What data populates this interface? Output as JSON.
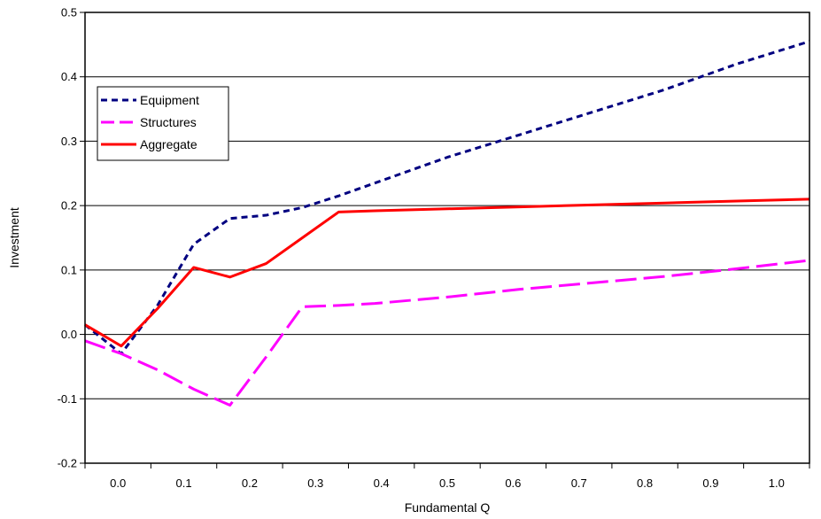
{
  "chart_data": {
    "type": "line",
    "title": "",
    "xlabel": "Fundamental Q",
    "ylabel": "Investment",
    "xlim": [
      0.0,
      1.0
    ],
    "ylim": [
      -0.2,
      0.5
    ],
    "xticks": [
      0.0,
      0.1,
      0.2,
      0.3,
      0.4,
      0.5,
      0.6,
      0.7,
      0.8,
      0.9,
      1.0
    ],
    "yticks": [
      -0.2,
      -0.1,
      0.0,
      0.1,
      0.2,
      0.3,
      0.4,
      0.5
    ],
    "xtick_labels": [
      "0.0",
      "0.1",
      "0.2",
      "0.3",
      "0.4",
      "0.5",
      "0.6",
      "0.7",
      "0.8",
      "0.9",
      "1.0"
    ],
    "ytick_labels": [
      "-0.2",
      "-0.1",
      "0.0",
      "0.1",
      "0.2",
      "0.3",
      "0.4",
      "0.5"
    ],
    "grid": "horizontal",
    "legend_position": "top-left",
    "series": [
      {
        "name": "Equipment",
        "color": "#000080",
        "style": "dotted",
        "x": [
          0.0,
          0.05,
          0.1,
          0.15,
          0.2,
          0.25,
          0.3,
          0.35,
          0.4,
          0.5,
          0.6,
          0.7,
          0.8,
          0.9,
          1.0
        ],
        "y": [
          0.015,
          -0.03,
          0.045,
          0.14,
          0.18,
          0.185,
          0.197,
          0.215,
          0.235,
          0.275,
          0.31,
          0.345,
          0.38,
          0.42,
          0.455
        ]
      },
      {
        "name": "Structures",
        "color": "#ff00ff",
        "style": "dashed",
        "x": [
          0.0,
          0.05,
          0.1,
          0.15,
          0.2,
          0.25,
          0.3,
          0.35,
          0.4,
          0.5,
          0.6,
          0.7,
          0.8,
          0.9,
          1.0
        ],
        "y": [
          -0.01,
          -0.03,
          -0.055,
          -0.085,
          -0.11,
          -0.035,
          0.043,
          0.045,
          0.048,
          0.058,
          0.07,
          0.08,
          0.09,
          0.102,
          0.115
        ]
      },
      {
        "name": "Aggregate",
        "color": "#ff0000",
        "style": "solid",
        "x": [
          0.0,
          0.05,
          0.1,
          0.15,
          0.2,
          0.25,
          0.3,
          0.35,
          0.4,
          0.5,
          0.6,
          0.7,
          0.8,
          0.9,
          1.0
        ],
        "y": [
          0.015,
          -0.018,
          0.04,
          0.104,
          0.089,
          0.11,
          0.15,
          0.19,
          0.192,
          0.195,
          0.198,
          0.201,
          0.204,
          0.207,
          0.21
        ]
      }
    ]
  }
}
